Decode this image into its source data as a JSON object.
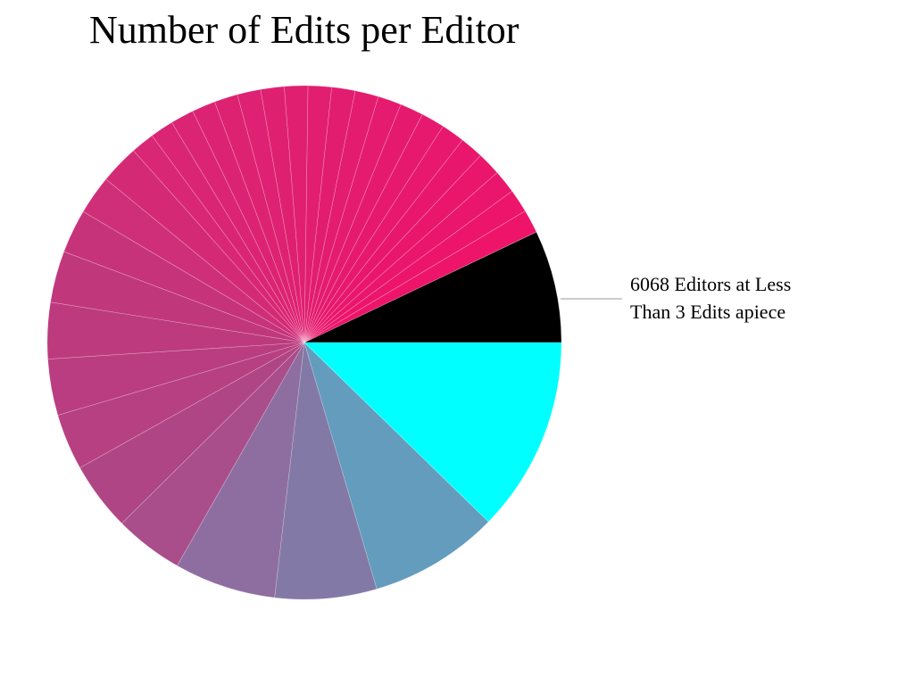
{
  "chart_data": {
    "type": "pie",
    "title": "Number of Edits per Editor",
    "annotation": {
      "lines": [
        "6068 Editors at Less",
        "Than 3 Edits apiece"
      ],
      "slice_index": 0
    },
    "start": "3 o'clock, counter-clockwise",
    "slices": [
      {
        "value": 7.2,
        "color": "#000000"
      },
      {
        "value": 1.5,
        "color": "#ee146a"
      },
      {
        "value": 1.5,
        "color": "#ec146b"
      },
      {
        "value": 1.5,
        "color": "#ea156c"
      },
      {
        "value": 1.5,
        "color": "#e9166c"
      },
      {
        "value": 1.5,
        "color": "#e8176d"
      },
      {
        "value": 1.5,
        "color": "#e7186d"
      },
      {
        "value": 1.5,
        "color": "#e6196e"
      },
      {
        "value": 1.5,
        "color": "#e51a6e"
      },
      {
        "value": 1.5,
        "color": "#e41b6f"
      },
      {
        "value": 1.5,
        "color": "#e31c6f"
      },
      {
        "value": 1.5,
        "color": "#e21d70"
      },
      {
        "value": 1.5,
        "color": "#e11e70"
      },
      {
        "value": 1.5,
        "color": "#e01f71"
      },
      {
        "value": 1.5,
        "color": "#df2071"
      },
      {
        "value": 1.5,
        "color": "#de2172"
      },
      {
        "value": 1.5,
        "color": "#dd2272"
      },
      {
        "value": 1.5,
        "color": "#dc2373"
      },
      {
        "value": 1.5,
        "color": "#db2473"
      },
      {
        "value": 1.5,
        "color": "#da2574"
      },
      {
        "value": 1.5,
        "color": "#d92675"
      },
      {
        "value": 2.5,
        "color": "#d42a76"
      },
      {
        "value": 2.5,
        "color": "#ce2f78"
      },
      {
        "value": 2.8,
        "color": "#c7337a"
      },
      {
        "value": 3.3,
        "color": "#c1377c"
      },
      {
        "value": 3.6,
        "color": "#bd3a7e"
      },
      {
        "value": 3.6,
        "color": "#b93d80"
      },
      {
        "value": 3.6,
        "color": "#b74082"
      },
      {
        "value": 4.4,
        "color": "#b04585"
      },
      {
        "value": 4.4,
        "color": "#a94d8b"
      },
      {
        "value": 6.5,
        "color": "#8e6ea0"
      },
      {
        "value": 6.5,
        "color": "#8379a6"
      },
      {
        "value": 8.3,
        "color": "#639cbd"
      },
      {
        "value": 12.5,
        "color": "#00ffff"
      }
    ]
  }
}
